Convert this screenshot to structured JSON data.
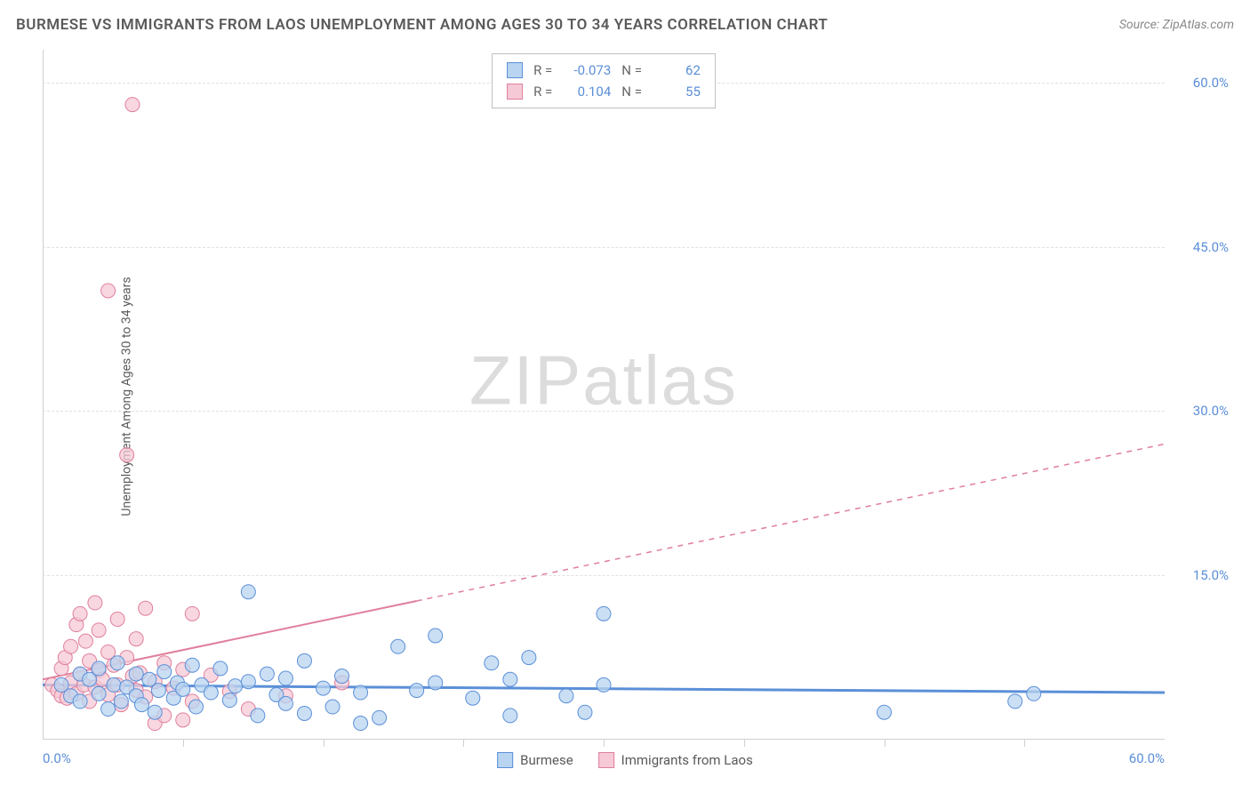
{
  "title": "BURMESE VS IMMIGRANTS FROM LAOS UNEMPLOYMENT AMONG AGES 30 TO 34 YEARS CORRELATION CHART",
  "source": "Source: ZipAtlas.com",
  "y_axis_label": "Unemployment Among Ages 30 to 34 years",
  "watermark_a": "ZIP",
  "watermark_b": "atlas",
  "chart": {
    "type": "scatter",
    "xlim": [
      0,
      60
    ],
    "ylim": [
      0,
      63
    ],
    "x_tick_labels": [
      "0.0%",
      "60.0%"
    ],
    "y_ticks": [
      15,
      30,
      45,
      60
    ],
    "y_tick_labels": [
      "15.0%",
      "30.0%",
      "45.0%",
      "60.0%"
    ],
    "x_minor_ticks": [
      7.5,
      15,
      22.5,
      30,
      37.5,
      45,
      52.5
    ],
    "background_color": "#ffffff",
    "grid_color": "#e0e0e0",
    "series": {
      "burmese": {
        "label": "Burmese",
        "color_fill": "#b8d4f0",
        "color_stroke": "#5b8fd8",
        "r_value": "-0.073",
        "n_value": "62",
        "trend": {
          "x1": 0,
          "y1": 5.0,
          "x2": 60,
          "y2": 4.3,
          "dashed_from": 60
        },
        "points": [
          [
            1,
            5
          ],
          [
            1.5,
            4
          ],
          [
            2,
            6
          ],
          [
            2,
            3.5
          ],
          [
            2.5,
            5.5
          ],
          [
            3,
            4.2
          ],
          [
            3,
            6.5
          ],
          [
            3.5,
            2.8
          ],
          [
            3.8,
            5
          ],
          [
            4,
            7
          ],
          [
            4.2,
            3.5
          ],
          [
            4.5,
            4.8
          ],
          [
            5,
            6
          ],
          [
            5,
            4
          ],
          [
            5.3,
            3.2
          ],
          [
            5.7,
            5.5
          ],
          [
            6,
            2.5
          ],
          [
            6.2,
            4.5
          ],
          [
            6.5,
            6.2
          ],
          [
            7,
            3.8
          ],
          [
            7.2,
            5.2
          ],
          [
            7.5,
            4.6
          ],
          [
            8,
            6.8
          ],
          [
            8.2,
            3
          ],
          [
            8.5,
            5
          ],
          [
            9,
            4.3
          ],
          [
            9.5,
            6.5
          ],
          [
            10,
            3.6
          ],
          [
            10.3,
            4.9
          ],
          [
            11,
            13.5
          ],
          [
            11,
            5.3
          ],
          [
            11.5,
            2.2
          ],
          [
            12,
            6
          ],
          [
            12.5,
            4.1
          ],
          [
            13,
            5.6
          ],
          [
            13,
            3.3
          ],
          [
            14,
            7.2
          ],
          [
            14,
            2.4
          ],
          [
            15,
            4.7
          ],
          [
            15.5,
            3
          ],
          [
            16,
            5.8
          ],
          [
            17,
            1.5
          ],
          [
            17,
            4.3
          ],
          [
            18,
            2
          ],
          [
            19,
            8.5
          ],
          [
            20,
            4.5
          ],
          [
            21,
            9.5
          ],
          [
            21,
            5.2
          ],
          [
            23,
            3.8
          ],
          [
            24,
            7
          ],
          [
            25,
            5.5
          ],
          [
            25,
            2.2
          ],
          [
            26,
            7.5
          ],
          [
            28,
            4
          ],
          [
            29,
            2.5
          ],
          [
            30,
            11.5
          ],
          [
            30,
            5
          ],
          [
            45,
            2.5
          ],
          [
            52,
            3.5
          ],
          [
            53,
            4.2
          ]
        ]
      },
      "laos": {
        "label": "Immigrants from Laos",
        "color_fill": "#f5c9d6",
        "color_stroke": "#e07f9c",
        "r_value": "0.104",
        "n_value": "55",
        "trend": {
          "x1": 0,
          "y1": 5.5,
          "x2": 60,
          "y2": 27,
          "dashed_from": 20
        },
        "points": [
          [
            0.5,
            5
          ],
          [
            0.8,
            4.5
          ],
          [
            1,
            6.5
          ],
          [
            1,
            4
          ],
          [
            1.2,
            7.5
          ],
          [
            1.3,
            3.8
          ],
          [
            1.5,
            5.2
          ],
          [
            1.5,
            8.5
          ],
          [
            1.8,
            10.5
          ],
          [
            1.8,
            4.2
          ],
          [
            2,
            6
          ],
          [
            2,
            11.5
          ],
          [
            2.2,
            5
          ],
          [
            2.3,
            9
          ],
          [
            2.5,
            3.5
          ],
          [
            2.5,
            7.2
          ],
          [
            2.8,
            4.8
          ],
          [
            2.8,
            12.5
          ],
          [
            3,
            6.3
          ],
          [
            3,
            10
          ],
          [
            3.2,
            5.5
          ],
          [
            3.5,
            8
          ],
          [
            3.5,
            4.1
          ],
          [
            3.5,
            41
          ],
          [
            3.8,
            6.8
          ],
          [
            4,
            11
          ],
          [
            4,
            5
          ],
          [
            4.2,
            3.2
          ],
          [
            4.5,
            7.5
          ],
          [
            4.5,
            26
          ],
          [
            4.8,
            5.8
          ],
          [
            4.8,
            58
          ],
          [
            5,
            4.5
          ],
          [
            5,
            9.2
          ],
          [
            5.2,
            6.1
          ],
          [
            5.5,
            12
          ],
          [
            5.5,
            3.9
          ],
          [
            6,
            5.3
          ],
          [
            6,
            1.5
          ],
          [
            6.5,
            7
          ],
          [
            6.5,
            2.2
          ],
          [
            7,
            4.7
          ],
          [
            7.5,
            6.4
          ],
          [
            7.5,
            1.8
          ],
          [
            8,
            11.5
          ],
          [
            8,
            3.5
          ],
          [
            9,
            5.9
          ],
          [
            10,
            4.4
          ],
          [
            11,
            2.8
          ],
          [
            13,
            4
          ],
          [
            16,
            5.2
          ]
        ]
      }
    }
  },
  "legend": {
    "r_label": "R =",
    "n_label": "N ="
  }
}
